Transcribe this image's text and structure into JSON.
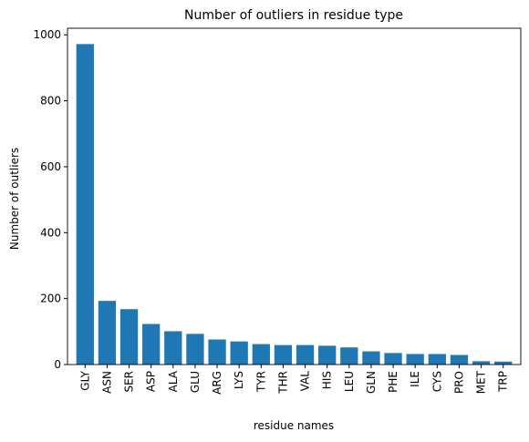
{
  "chart_data": {
    "type": "bar",
    "title": "Number of outliers in residue type",
    "xlabel": "residue names",
    "ylabel": "Number of outliers",
    "categories": [
      "GLY",
      "ASN",
      "SER",
      "ASP",
      "ALA",
      "GLU",
      "ARG",
      "LYS",
      "TYR",
      "THR",
      "VAL",
      "HIS",
      "LEU",
      "GLN",
      "PHE",
      "ILE",
      "CYS",
      "PRO",
      "MET",
      "TRP"
    ],
    "values": [
      972,
      193,
      168,
      123,
      101,
      93,
      76,
      70,
      62,
      59,
      59,
      57,
      52,
      40,
      35,
      32,
      32,
      29,
      10,
      9
    ],
    "ylim": [
      0,
      1020
    ],
    "yticks": [
      0,
      200,
      400,
      600,
      800,
      1000
    ],
    "bar_color": "#1f77b4",
    "grid": false
  }
}
